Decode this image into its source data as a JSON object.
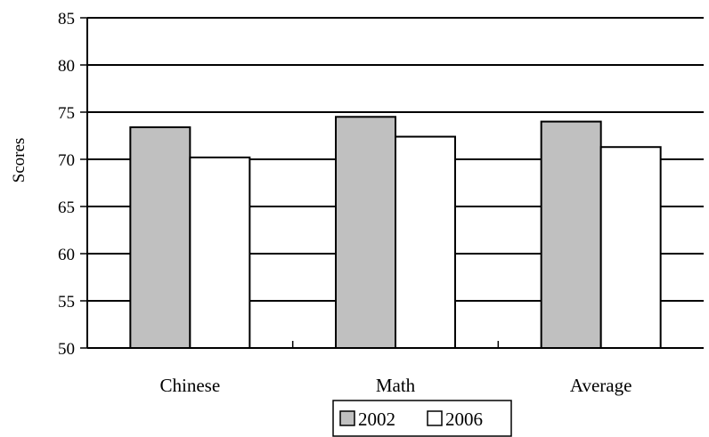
{
  "chart_data": {
    "type": "bar",
    "categories": [
      "Chinese",
      "Math",
      "Average"
    ],
    "series": [
      {
        "name": "2002",
        "values": [
          73.4,
          74.5,
          74.0
        ],
        "color": "#c0c0c0"
      },
      {
        "name": "2006",
        "values": [
          70.2,
          72.4,
          71.3
        ],
        "color": "#ffffff"
      }
    ],
    "ylabel": "Scores",
    "xlabel": "",
    "ylim": [
      50,
      85
    ],
    "yticks": [
      "50",
      "55",
      "60",
      "65",
      "70",
      "75",
      "80",
      "85"
    ],
    "grid": true,
    "legend_position": "bottom"
  }
}
